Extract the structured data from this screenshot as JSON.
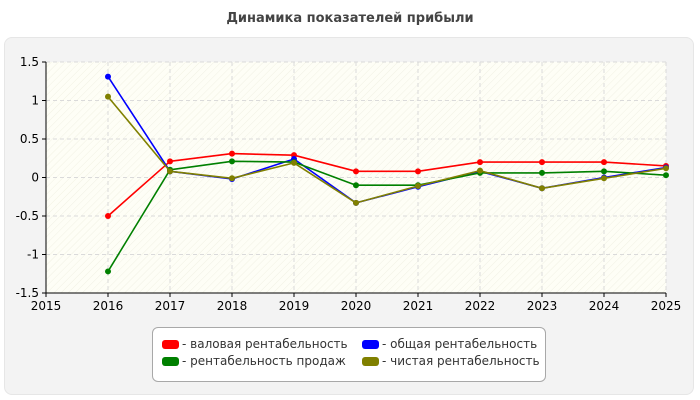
{
  "title": "Динамика показателей прибыли",
  "chart_data": {
    "type": "line",
    "title": "Динамика показателей прибыли",
    "xlabel": "",
    "ylabel": "",
    "xlim": [
      2015,
      2025
    ],
    "ylim": [
      -1.5,
      1.5
    ],
    "x_ticks": [
      "2015",
      "2016",
      "2017",
      "2018",
      "2019",
      "2020",
      "2021",
      "2022",
      "2023",
      "2024",
      "2025"
    ],
    "y_ticks": [
      "1.5",
      "1",
      "0.5",
      "0",
      "-0.5",
      "-1",
      "-1.5"
    ],
    "grid": true,
    "legend_position": "bottom",
    "x": [
      2016,
      2017,
      2018,
      2019,
      2020,
      2021,
      2022,
      2023,
      2024,
      2025
    ],
    "series": [
      {
        "name": "- валовая рентабельность",
        "color": "#ff0000",
        "values": [
          -0.5,
          0.21,
          0.31,
          0.29,
          0.08,
          0.08,
          0.2,
          0.2,
          0.2,
          0.15
        ]
      },
      {
        "name": "- общая рентабельность",
        "color": "#0000ff",
        "values": [
          1.31,
          0.08,
          -0.02,
          0.24,
          -0.33,
          -0.12,
          0.08,
          -0.14,
          0.0,
          0.13
        ]
      },
      {
        "name": "- рентабельность продаж",
        "color": "#008000",
        "values": [
          -1.22,
          0.1,
          0.21,
          0.2,
          -0.1,
          -0.1,
          0.06,
          0.06,
          0.08,
          0.03
        ]
      },
      {
        "name": "- чистая рентабельность",
        "color": "#808000",
        "values": [
          1.05,
          0.08,
          -0.01,
          0.19,
          -0.33,
          -0.11,
          0.09,
          -0.14,
          -0.01,
          0.12
        ]
      }
    ]
  }
}
